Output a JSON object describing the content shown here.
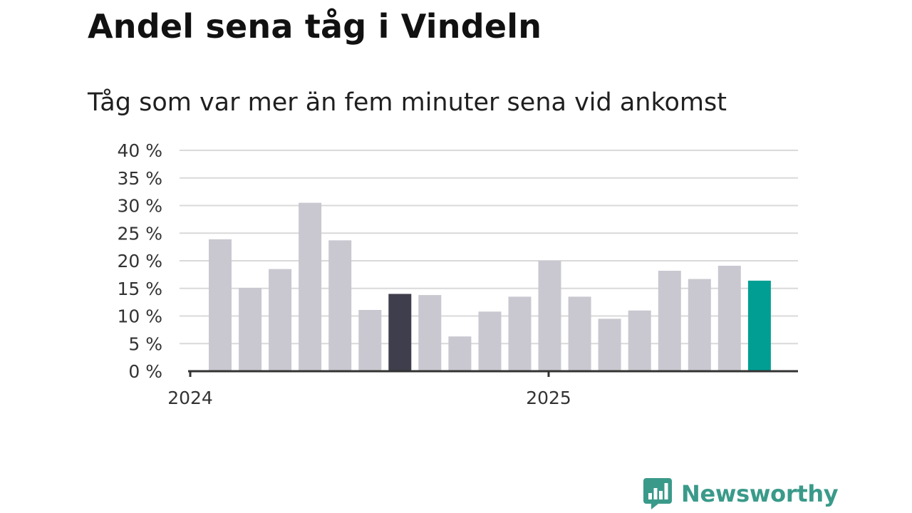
{
  "chart_data": {
    "type": "bar",
    "title": "Andel sena tåg i Vindeln",
    "subtitle": "Tåg som var mer än fem minuter sena vid ankomst",
    "xlabel": "",
    "ylabel": "",
    "ylim": [
      0,
      40
    ],
    "yticks": [
      0,
      5,
      10,
      15,
      20,
      25,
      30,
      35,
      40
    ],
    "ytick_labels": [
      "0 %",
      "5 %",
      "10 %",
      "15 %",
      "20 %",
      "25 %",
      "30 %",
      "35 %",
      "40 %"
    ],
    "x_labels": [
      "2024",
      "2025"
    ],
    "values": [
      23.9,
      15.1,
      18.5,
      30.5,
      23.7,
      11.1,
      14.0,
      13.8,
      6.3,
      10.8,
      13.5,
      20.0,
      13.5,
      9.5,
      11.0,
      18.2,
      16.7,
      19.1,
      16.4
    ],
    "colors": {
      "default": "#c9c8d0",
      "highlight": "#3f3e4c",
      "latest": "#009e93",
      "grid": "#d9d9d9",
      "axis": "#333333"
    },
    "highlight_index": 6,
    "latest_index": 18,
    "grid": true,
    "legend": "none"
  },
  "logo": {
    "text": "Newsworthy",
    "icon": "bar-chart-speech-bubble-icon",
    "color": "#3a9a8a"
  }
}
